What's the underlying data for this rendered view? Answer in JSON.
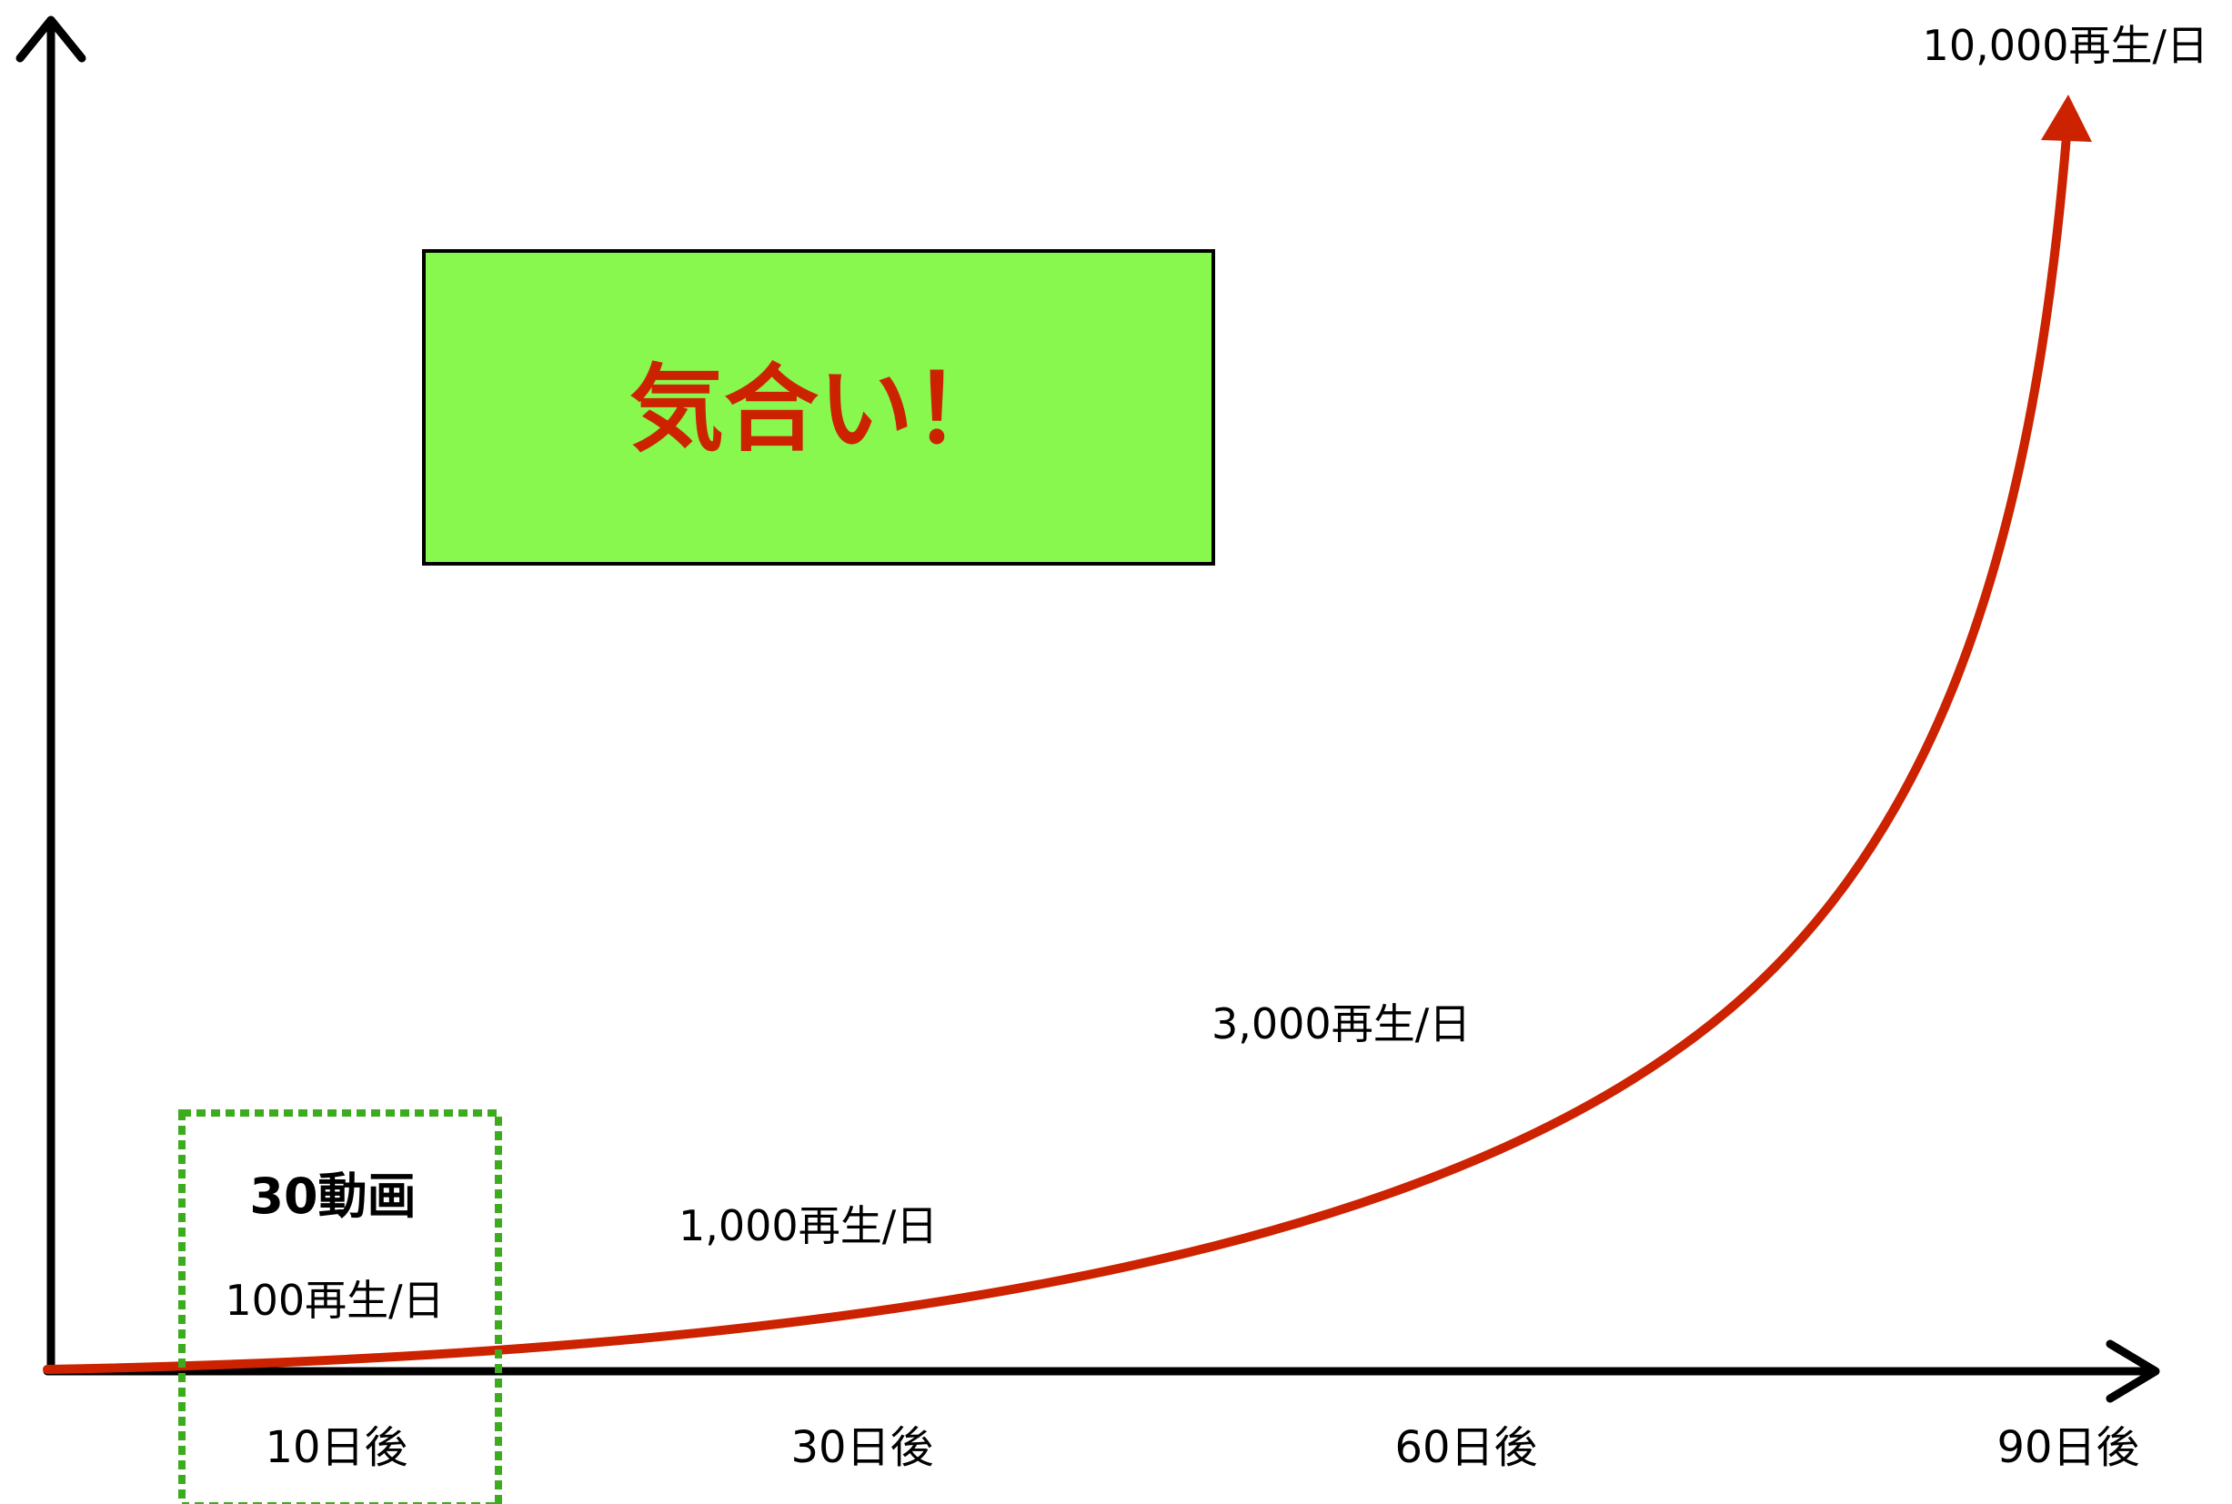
{
  "colors": {
    "axis": "#000000",
    "curve": "#cc2200",
    "banner_fill": "#88f74e",
    "banner_border": "#000000",
    "banner_text": "#cc2200",
    "highlight_border": "#3cac1e"
  },
  "banner": {
    "text": "気合い！"
  },
  "highlight_box": {
    "title": "30動画",
    "subtitle": "100再生/日",
    "tick": "10日後"
  },
  "x_ticks": [
    {
      "label": "10日後"
    },
    {
      "label": "30日後"
    },
    {
      "label": "60日後"
    },
    {
      "label": "90日後"
    }
  ],
  "milestones": [
    {
      "label": "100再生/日"
    },
    {
      "label": "1,000再生/日"
    },
    {
      "label": "3,000再生/日"
    },
    {
      "label": "10,000再生/日"
    }
  ]
}
